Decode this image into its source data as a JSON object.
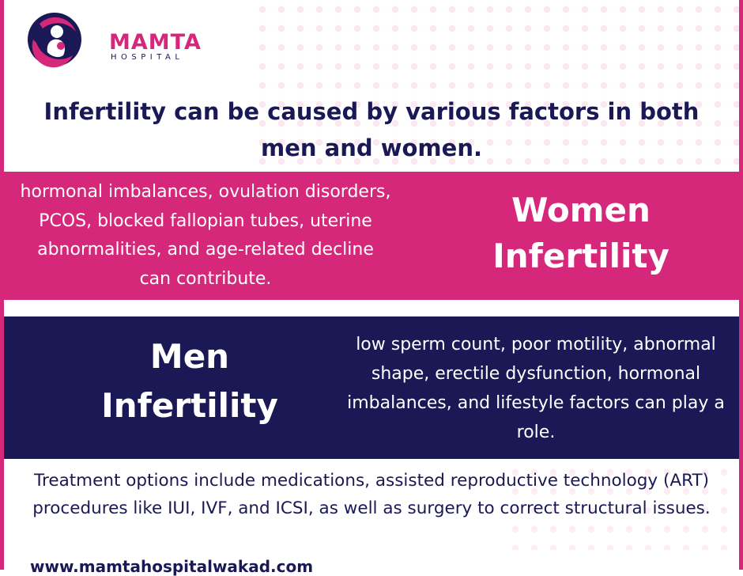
{
  "brand": {
    "name": "MAMTA",
    "sub": "HOSPITAL",
    "logo_icon": "mother-child-icon",
    "colors": {
      "pink": "#d6287a",
      "navy": "#1a1855"
    }
  },
  "headline": "Infertility can be caused by various factors in both men and women.",
  "women": {
    "title": "Women Infertility",
    "text": "hormonal imbalances, ovulation disorders, PCOS, blocked fallopian tubes, uterine abnormalities, and age-related decline can contribute."
  },
  "men": {
    "title": "Men Infertility",
    "text": "low sperm count, poor motility, abnormal shape, erectile dysfunction, hormonal imbalances, and lifestyle factors can play a role."
  },
  "treatment": "Treatment options include medications, assisted reproductive technology (ART) procedures like IUI, IVF, and ICSI, as well as surgery to correct structural issues.",
  "website": "www.mamtahospitalwakad.com"
}
